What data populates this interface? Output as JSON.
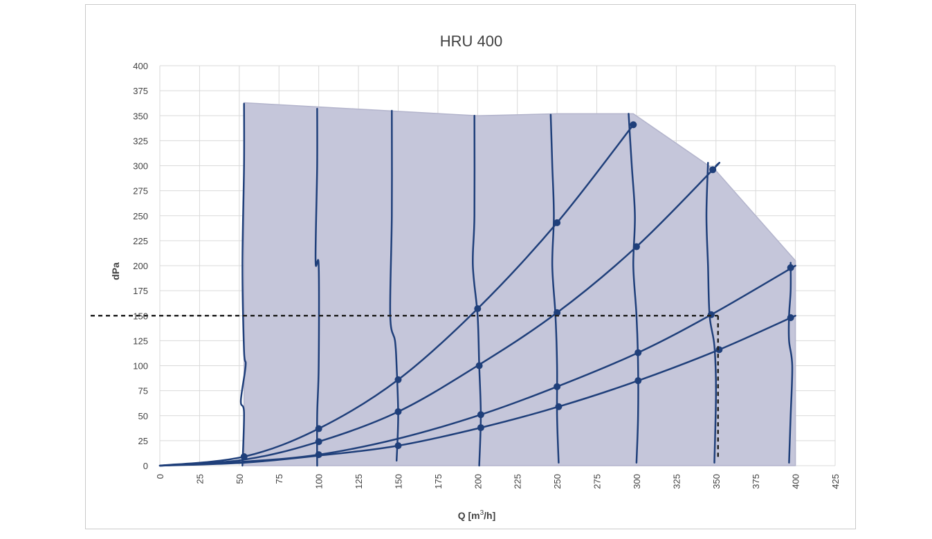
{
  "chart_data": {
    "type": "line",
    "title": "HRU 400",
    "xlabel": "Q  [m³/h]",
    "xlabel_main": "Q  [m",
    "xlabel_sup": "3",
    "xlabel_tail": "/h]",
    "ylabel": "dPa",
    "xlim": [
      0,
      425
    ],
    "ylim": [
      0,
      400
    ],
    "x_ticks": [
      0,
      25,
      50,
      75,
      100,
      125,
      150,
      175,
      200,
      225,
      250,
      275,
      300,
      325,
      350,
      375,
      400,
      425
    ],
    "y_ticks": [
      0,
      25,
      50,
      75,
      100,
      125,
      150,
      175,
      200,
      225,
      250,
      275,
      300,
      325,
      350,
      375,
      400
    ],
    "grid": true,
    "legend": "none",
    "colors": {
      "series": "#1f3f7a",
      "envelope": "#c5c6da",
      "envelope_edge": "#b3b4cc",
      "grid": "#d9d9d9",
      "operating_point": "#222222"
    },
    "operating_area": [
      [
        53,
        0
      ],
      [
        53,
        363
      ],
      [
        200,
        350
      ],
      [
        250,
        352
      ],
      [
        298,
        352
      ],
      [
        350,
        295
      ],
      [
        400,
        205
      ],
      [
        400,
        0
      ]
    ],
    "system_curves": [
      {
        "points": [
          [
            0,
            0
          ],
          [
            53,
            9
          ],
          [
            100,
            37
          ],
          [
            150,
            86
          ],
          [
            200,
            157
          ],
          [
            250,
            243
          ],
          [
            298,
            341
          ]
        ]
      },
      {
        "points": [
          [
            0,
            0
          ],
          [
            53,
            6
          ],
          [
            100,
            24
          ],
          [
            150,
            54
          ],
          [
            200,
            100
          ],
          [
            250,
            153
          ],
          [
            300,
            219
          ],
          [
            348,
            296
          ],
          [
            350,
            300
          ]
        ]
      },
      {
        "points": [
          [
            0,
            0
          ],
          [
            53,
            4
          ],
          [
            100,
            11
          ],
          [
            150,
            27
          ],
          [
            202,
            51
          ],
          [
            250,
            79
          ],
          [
            301,
            113
          ],
          [
            347,
            151
          ],
          [
            400,
            200
          ]
        ]
      },
      {
        "points": [
          [
            0,
            0
          ],
          [
            53,
            3
          ],
          [
            100,
            10
          ],
          [
            150,
            20
          ],
          [
            202,
            38
          ],
          [
            251,
            59
          ],
          [
            301,
            85
          ],
          [
            352,
            116
          ],
          [
            400,
            150
          ]
        ]
      }
    ],
    "fan_speed_curves": [
      {
        "points": [
          [
            53,
            362
          ],
          [
            53,
            300
          ],
          [
            52,
            200
          ],
          [
            53,
            115
          ],
          [
            54,
            100
          ],
          [
            51,
            65
          ],
          [
            53,
            53
          ],
          [
            52,
            0
          ]
        ]
      },
      {
        "points": [
          [
            99,
            357
          ],
          [
            99,
            300
          ],
          [
            98,
            205
          ],
          [
            100,
            200
          ],
          [
            100,
            100
          ],
          [
            99,
            50
          ],
          [
            99,
            0
          ]
        ]
      },
      {
        "points": [
          [
            146,
            355
          ],
          [
            146,
            250
          ],
          [
            145,
            150
          ],
          [
            148,
            125
          ],
          [
            149,
            100
          ],
          [
            150,
            50
          ],
          [
            149,
            5
          ]
        ]
      },
      {
        "points": [
          [
            198,
            350
          ],
          [
            198,
            250
          ],
          [
            197,
            200
          ],
          [
            200,
            150
          ],
          [
            201,
            100
          ],
          [
            202,
            50
          ],
          [
            201,
            0
          ]
        ]
      },
      {
        "points": [
          [
            246,
            351
          ],
          [
            247,
            300
          ],
          [
            248,
            250
          ],
          [
            247,
            200
          ],
          [
            249,
            150
          ],
          [
            250,
            100
          ],
          [
            250,
            50
          ],
          [
            251,
            3
          ]
        ]
      },
      {
        "points": [
          [
            295,
            352
          ],
          [
            297,
            300
          ],
          [
            299,
            250
          ],
          [
            298,
            200
          ],
          [
            300,
            150
          ],
          [
            301,
            100
          ],
          [
            301,
            50
          ],
          [
            300,
            3
          ]
        ]
      },
      {
        "points": [
          [
            345,
            303
          ],
          [
            344,
            250
          ],
          [
            345,
            200
          ],
          [
            346,
            150
          ],
          [
            349,
            120
          ],
          [
            350,
            75
          ],
          [
            349,
            3
          ]
        ]
      },
      {
        "points": [
          [
            397,
            203
          ],
          [
            397,
            175
          ],
          [
            396,
            150
          ],
          [
            396,
            125
          ],
          [
            398,
            100
          ],
          [
            397,
            50
          ],
          [
            396,
            3
          ]
        ]
      }
    ],
    "markers": [
      [
        53,
        9
      ],
      [
        100,
        37
      ],
      [
        150,
        86
      ],
      [
        200,
        157
      ],
      [
        250,
        243
      ],
      [
        298,
        341
      ],
      [
        100,
        24
      ],
      [
        150,
        54
      ],
      [
        201,
        100
      ],
      [
        250,
        153
      ],
      [
        300,
        219
      ],
      [
        348,
        296
      ],
      [
        100,
        11
      ],
      [
        150,
        20
      ],
      [
        202,
        51
      ],
      [
        250,
        79
      ],
      [
        301,
        113
      ],
      [
        347,
        151
      ],
      [
        397,
        198
      ],
      [
        202,
        38
      ],
      [
        251,
        59
      ],
      [
        301,
        85
      ],
      [
        352,
        116
      ],
      [
        397,
        148
      ]
    ],
    "operating_point": {
      "x": 350,
      "y": 150
    }
  }
}
